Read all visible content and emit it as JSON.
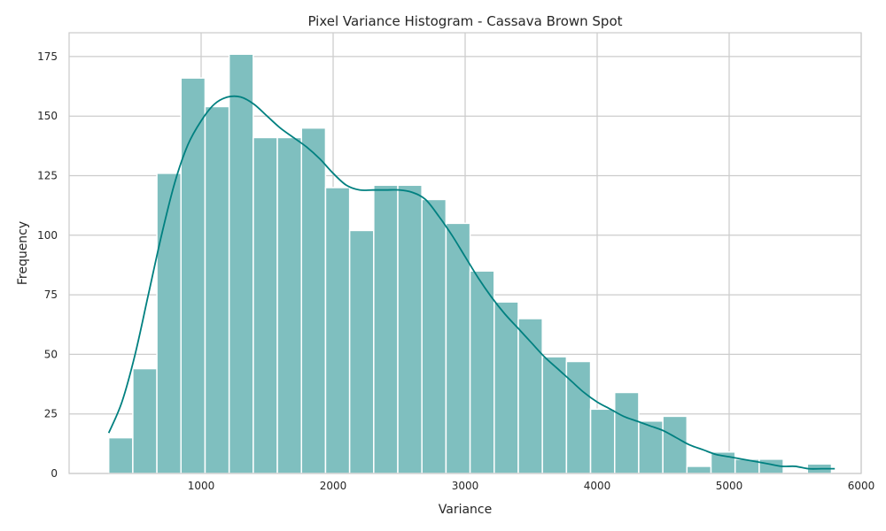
{
  "chart_data": {
    "type": "bar",
    "title": "Pixel Variance Histogram - Cassava Brown Spot",
    "xlabel": "Variance",
    "ylabel": "Frequency",
    "xlim": [
      0,
      6000
    ],
    "ylim": [
      0,
      185
    ],
    "xticks": [
      1000,
      2000,
      3000,
      4000,
      5000,
      6000
    ],
    "yticks": [
      0,
      25,
      50,
      75,
      100,
      125,
      150,
      175
    ],
    "grid": true,
    "bar_color": "#7fbfbf",
    "line_color": "#008080",
    "bins": {
      "start": 300,
      "width": 182.5,
      "counts": [
        15,
        44,
        126,
        166,
        154,
        176,
        141,
        141,
        145,
        120,
        102,
        121,
        121,
        115,
        105,
        85,
        72,
        65,
        49,
        47,
        27,
        34,
        22,
        24,
        3,
        9,
        6,
        6,
        0,
        4
      ]
    },
    "kde": {
      "x": [
        300,
        400,
        500,
        600,
        700,
        800,
        900,
        1000,
        1100,
        1200,
        1300,
        1400,
        1500,
        1600,
        1700,
        1800,
        1900,
        2000,
        2100,
        2200,
        2300,
        2400,
        2500,
        2600,
        2700,
        2800,
        2900,
        3000,
        3100,
        3200,
        3300,
        3400,
        3500,
        3600,
        3700,
        3800,
        3900,
        4000,
        4100,
        4200,
        4300,
        4400,
        4500,
        4600,
        4700,
        4800,
        4900,
        5000,
        5100,
        5200,
        5300,
        5400,
        5500,
        5600,
        5700,
        5800
      ],
      "y": [
        17,
        30,
        50,
        75,
        100,
        122,
        138,
        148,
        155,
        158,
        158,
        155,
        150,
        145,
        141,
        137,
        132,
        126,
        121,
        119,
        119,
        119,
        119,
        118,
        115,
        108,
        100,
        91,
        82,
        74,
        67,
        61,
        55,
        49,
        44,
        39,
        34,
        30,
        27,
        24,
        22,
        20,
        18,
        15,
        12,
        10,
        8,
        7,
        6,
        5,
        4,
        3,
        3,
        2,
        2,
        2
      ]
    }
  }
}
